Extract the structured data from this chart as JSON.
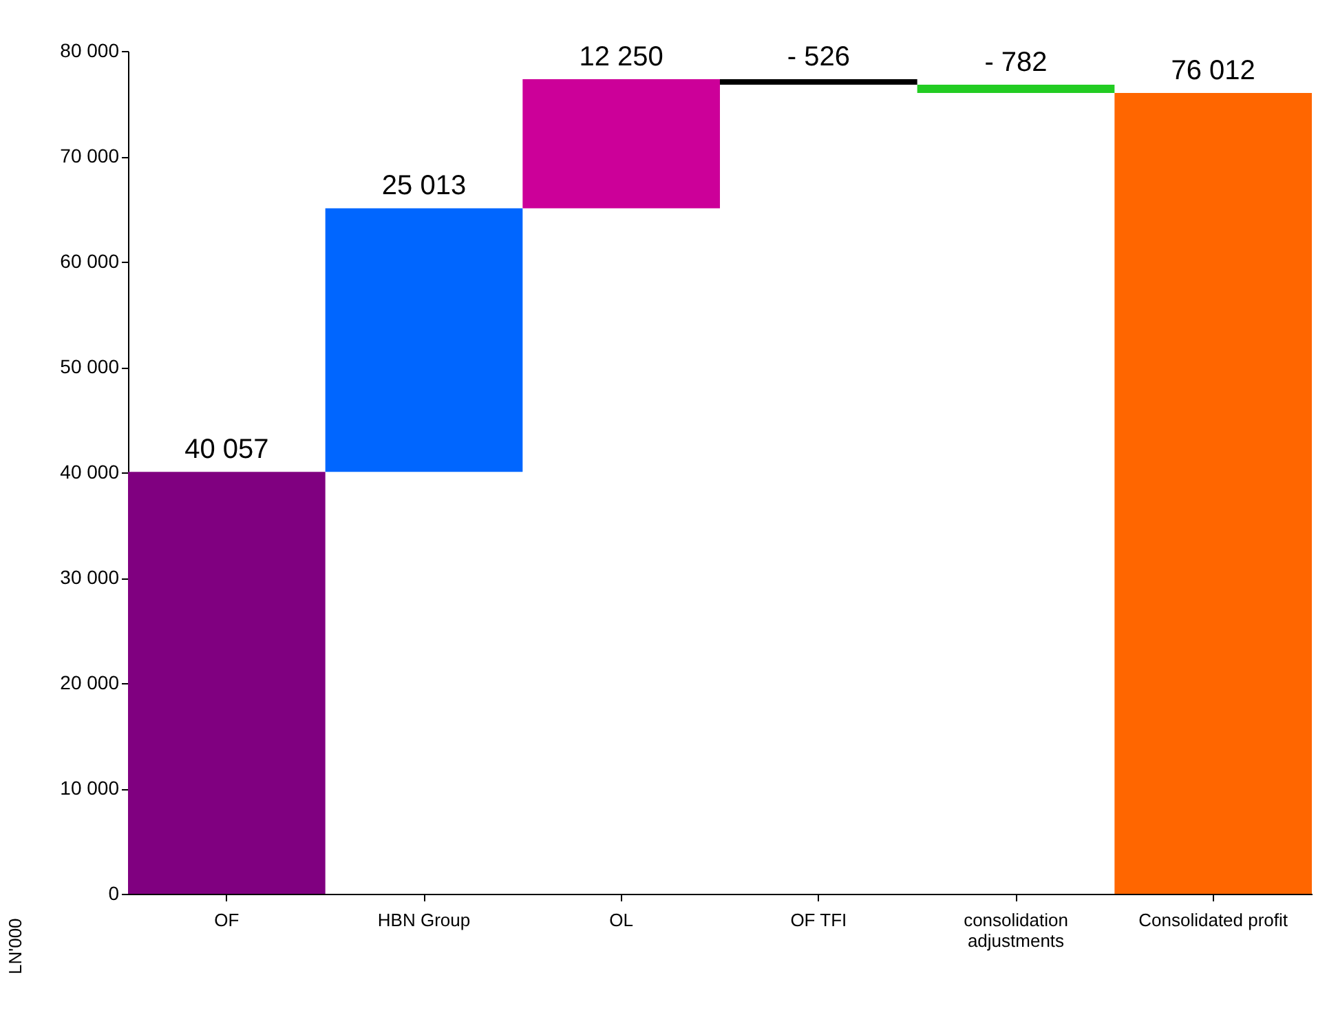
{
  "chart_data": {
    "type": "bar",
    "ylabel": "LN'000",
    "categories": [
      "OF",
      "HBN Group",
      "OL",
      "OF TFI",
      "consolidation adjustments",
      "Consolidated profit"
    ],
    "values": [
      40057,
      25013,
      12250,
      -526,
      -782,
      76012
    ],
    "base": [
      0,
      40057,
      65070,
      77320,
      76794,
      0
    ],
    "colors": [
      "#800080",
      "#0066ff",
      "#cc0099",
      "#000000",
      "#22cc22",
      "#ff6600"
    ],
    "value_labels": [
      "40 057",
      "25 013",
      "12 250",
      "- 526",
      "- 782",
      "76 012"
    ],
    "ylim": [
      0,
      80000
    ],
    "yticks": [
      {
        "value": 0,
        "label": "0"
      },
      {
        "value": 10000,
        "label": "10 000"
      },
      {
        "value": 20000,
        "label": "20 000"
      },
      {
        "value": 30000,
        "label": "30 000"
      },
      {
        "value": 40000,
        "label": "40 000"
      },
      {
        "value": 50000,
        "label": "50 000"
      },
      {
        "value": 60000,
        "label": "60 000"
      },
      {
        "value": 70000,
        "label": "70 000"
      },
      {
        "value": 80000,
        "label": "80 000"
      }
    ],
    "grid": false
  }
}
